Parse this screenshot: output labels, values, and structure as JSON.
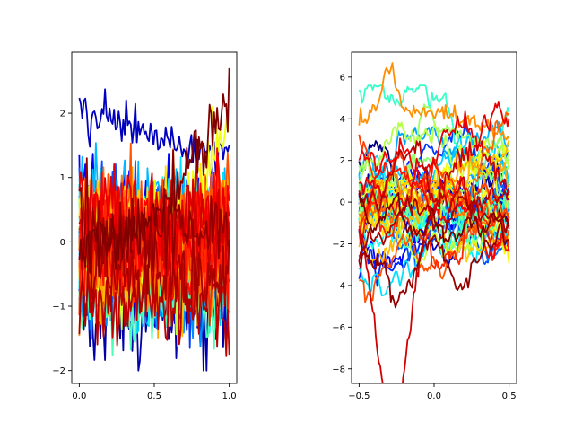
{
  "chart_data": [
    {
      "type": "line",
      "title": "",
      "xlabel": "",
      "ylabel": "",
      "xlim": [
        -0.05,
        1.05
      ],
      "ylim": [
        -2.2,
        2.95
      ],
      "xticks": [
        0.0,
        0.5,
        1.0
      ],
      "xtick_labels": [
        "0.0",
        "0.5",
        "1.0"
      ],
      "yticks": [
        -2,
        -1,
        0,
        1,
        2
      ],
      "ytick_labels": [
        "−2",
        "−1",
        "0",
        "1",
        "2"
      ],
      "grid": false,
      "legend": "none",
      "colormap": "jet",
      "n_series": 50,
      "points_per_series": 100,
      "x_range": [
        0.0,
        1.0
      ],
      "series_behavior": "noisy traces, mostly within -1.5 to 1.5; one red trace near 2 around x 0 to 0.4; one dark-red trace rising to about 2.7 near x 0.9"
    },
    {
      "type": "line",
      "title": "",
      "xlabel": "",
      "ylabel": "",
      "xlim": [
        -0.55,
        0.55
      ],
      "ylim": [
        -8.7,
        7.2
      ],
      "xticks": [
        -0.5,
        0.0,
        0.5
      ],
      "xtick_labels": [
        "−0.5",
        "0.0",
        "0.5"
      ],
      "yticks": [
        -8,
        -6,
        -4,
        -2,
        0,
        2,
        4,
        6
      ],
      "ytick_labels": [
        "−8",
        "−6",
        "−4",
        "−2",
        "0",
        "2",
        "4",
        "6"
      ],
      "grid": false,
      "legend": "none",
      "colormap": "jet",
      "n_series": 50,
      "points_per_series": 100,
      "x_range": [
        -0.5,
        0.5
      ],
      "series_behavior": "smoother wandering traces, mostly within -5 to 5; extremes about 6.4 near x -0.3 and -8.1 near x -0.28"
    }
  ]
}
